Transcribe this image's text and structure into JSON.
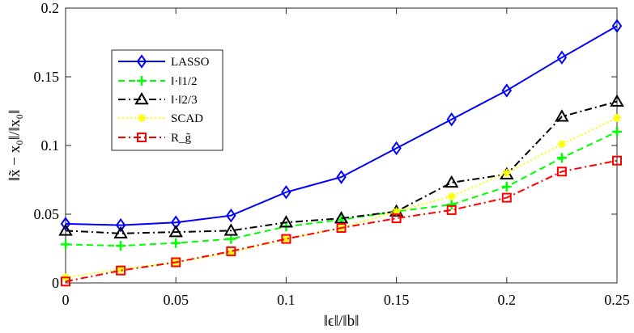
{
  "chart_data": {
    "type": "line",
    "title": "",
    "xlabel": "‖ϵ‖/‖b‖",
    "ylabel": "‖x̃ − x₀‖/‖x₀‖",
    "xlim": [
      0,
      0.25
    ],
    "ylim": [
      0,
      0.2
    ],
    "grid": false,
    "legend_position": "top-left",
    "x": [
      0,
      0.025,
      0.05,
      0.075,
      0.1,
      0.125,
      0.15,
      0.175,
      0.2,
      0.225,
      0.25
    ],
    "x_ticks": [
      "0",
      "0.05",
      "0.1",
      "0.15",
      "0.2",
      "0.25"
    ],
    "x_tick_values": [
      0,
      0.05,
      0.1,
      0.15,
      0.2,
      0.25
    ],
    "y_ticks": [
      "0",
      "0.05",
      "0.1",
      "0.15",
      "0.2"
    ],
    "y_tick_values": [
      0,
      0.05,
      0.1,
      0.15,
      0.2
    ],
    "series": [
      {
        "name": "LASSO",
        "color": "#0000ff",
        "dash": "",
        "marker": "diamond",
        "values": [
          0.043,
          0.042,
          0.044,
          0.049,
          0.066,
          0.077,
          0.098,
          0.119,
          0.14,
          0.164,
          0.187
        ]
      },
      {
        "name": "‖·‖1/2",
        "color": "#00ff00",
        "dash": "8,5",
        "marker": "plus",
        "values": [
          0.028,
          0.027,
          0.029,
          0.032,
          0.041,
          0.046,
          0.052,
          0.057,
          0.07,
          0.091,
          0.11
        ]
      },
      {
        "name": "‖·‖2/3",
        "color": "#000000",
        "dash": "9,4,2,4",
        "marker": "triangle",
        "values": [
          0.038,
          0.036,
          0.037,
          0.038,
          0.044,
          0.047,
          0.052,
          0.073,
          0.079,
          0.121,
          0.132
        ]
      },
      {
        "name": "SCAD",
        "color": "#ffff00",
        "dash": "2,3",
        "marker": "asterisk",
        "values": [
          0.004,
          0.01,
          0.015,
          0.022,
          0.032,
          0.04,
          0.052,
          0.063,
          0.08,
          0.101,
          0.12
        ]
      },
      {
        "name": "R_g̃",
        "color": "#ff0000",
        "dash": "9,4,2,4",
        "marker": "square",
        "values": [
          0.001,
          0.009,
          0.015,
          0.023,
          0.032,
          0.04,
          0.047,
          0.053,
          0.062,
          0.081,
          0.089
        ]
      }
    ]
  }
}
